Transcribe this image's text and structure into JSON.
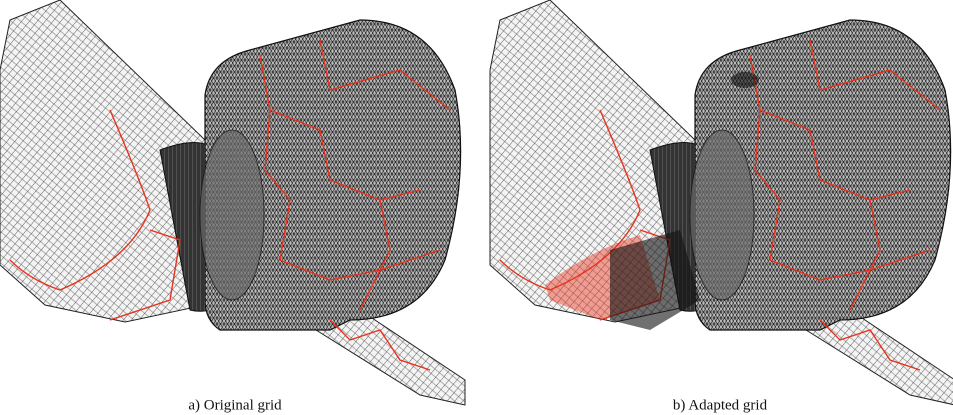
{
  "panels": [
    {
      "caption": "a) Original grid"
    },
    {
      "caption": "b) Adapted grid"
    }
  ]
}
